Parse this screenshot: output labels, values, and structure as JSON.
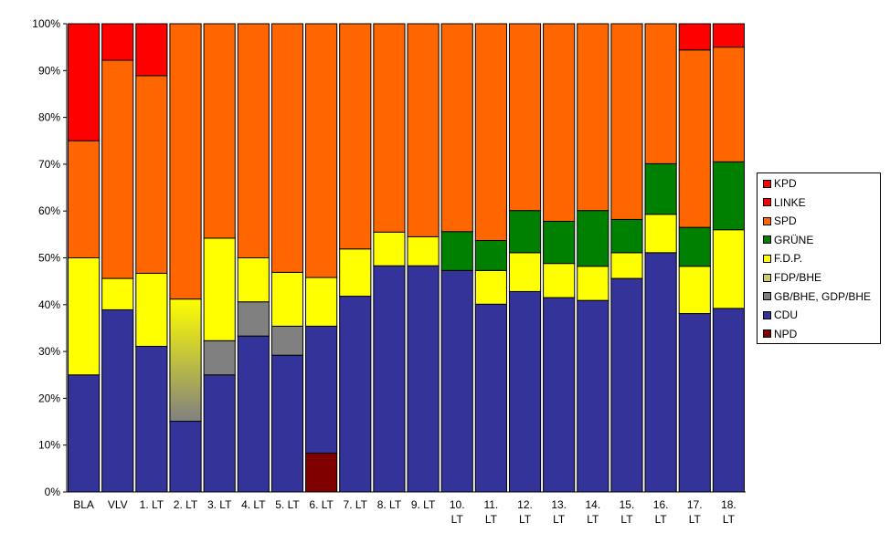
{
  "chart_data": {
    "type": "bar",
    "stacked": "percent",
    "categories": [
      "BLA",
      "VLV",
      "1. LT",
      "2. LT",
      "3. LT",
      "4. LT",
      "5. LT",
      "6. LT",
      "7. LT",
      "8. LT",
      "9. LT",
      "10. LT",
      "11. LT",
      "12. LT",
      "13. LT",
      "14. LT",
      "15. LT",
      "16. LT",
      "17. LT",
      "18. LT"
    ],
    "category_lines": [
      [
        "BLA"
      ],
      [
        "VLV"
      ],
      [
        "1. LT"
      ],
      [
        "2. LT"
      ],
      [
        "3. LT"
      ],
      [
        "4. LT"
      ],
      [
        "5. LT"
      ],
      [
        "6. LT"
      ],
      [
        "7. LT"
      ],
      [
        "8. LT"
      ],
      [
        "9. LT"
      ],
      [
        "10.",
        "LT"
      ],
      [
        "11.",
        "LT"
      ],
      [
        "12.",
        "LT"
      ],
      [
        "13.",
        "LT"
      ],
      [
        "14.",
        "LT"
      ],
      [
        "15.",
        "LT"
      ],
      [
        "16.",
        "LT"
      ],
      [
        "17.",
        "LT"
      ],
      [
        "18.",
        "LT"
      ]
    ],
    "ylim": [
      0,
      100
    ],
    "yticks": [
      "0%",
      "10%",
      "20%",
      "30%",
      "40%",
      "50%",
      "60%",
      "70%",
      "80%",
      "90%",
      "100%"
    ],
    "legend_position": "right",
    "series": [
      {
        "name": "NPD",
        "color": "#800000",
        "values": [
          0,
          0,
          0,
          0,
          0,
          0,
          0,
          8.3,
          0,
          0,
          0,
          0,
          0,
          0,
          0,
          0,
          0,
          0,
          0,
          0
        ]
      },
      {
        "name": "CDU",
        "color": "#333399",
        "values": [
          25,
          38.9,
          31.1,
          15.1,
          25,
          33.3,
          29.2,
          27.1,
          41.8,
          48.3,
          48.3,
          47.3,
          40.1,
          42.8,
          41.5,
          40.9,
          45.6,
          51.1,
          38.1,
          39.2
        ]
      },
      {
        "name": "GB/BHE, GDP/BHE",
        "color": "#808080",
        "values": [
          0,
          0,
          0,
          0,
          7.3,
          7.3,
          6.2,
          0,
          0,
          0,
          0,
          0,
          0,
          0,
          0,
          0,
          0,
          0,
          0,
          0
        ]
      },
      {
        "name": "FDP/BHE",
        "color": "#cccc66",
        "values": [
          0,
          0,
          0,
          26.1,
          0,
          0,
          0,
          0,
          0,
          0,
          0,
          0,
          0,
          0,
          0,
          0,
          0,
          0,
          0,
          0
        ]
      },
      {
        "name": "F.D.P.",
        "color": "#ffff00",
        "values": [
          25,
          6.7,
          15.6,
          0,
          21.9,
          9.4,
          11.5,
          10.4,
          10.1,
          7.2,
          6.2,
          0,
          7.2,
          8.3,
          7.3,
          7.3,
          5.5,
          8.2,
          10.1,
          16.8
        ]
      },
      {
        "name": "GRÜNE",
        "color": "#008000",
        "values": [
          0,
          0,
          0,
          0,
          0,
          0,
          0,
          0,
          0,
          0,
          0,
          8.3,
          6.4,
          9,
          9,
          11.9,
          7.1,
          10.8,
          8.3,
          14.5
        ]
      },
      {
        "name": "SPD",
        "color": "#ff6600",
        "values": [
          25,
          46.6,
          42.2,
          58.8,
          45.8,
          50,
          53.1,
          54.2,
          48.1,
          44.5,
          45.5,
          44.4,
          46.3,
          39.9,
          42.2,
          39.9,
          41.8,
          29.9,
          37.9,
          24.5
        ]
      },
      {
        "name": "LINKE",
        "color": "#ff0000",
        "values": [
          0,
          0,
          0,
          0,
          0,
          0,
          0,
          0,
          0,
          0,
          0,
          0,
          0,
          0,
          0,
          0,
          0,
          0,
          5.6,
          5
        ]
      },
      {
        "name": "KPD",
        "color": "#ff0000",
        "values": [
          25,
          7.8,
          11.1,
          0,
          0,
          0,
          0,
          0,
          0,
          0,
          0,
          0,
          0,
          0,
          0,
          0,
          0,
          0,
          0,
          0
        ]
      }
    ],
    "legend_order": [
      "KPD",
      "LINKE",
      "SPD",
      "GRÜNE",
      "F.D.P.",
      "FDP/BHE",
      "GB/BHE, GDP/BHE",
      "CDU",
      "NPD"
    ],
    "gradient_note": "2. LT FDP/BHE segment shows a yellow-to-grey gradient"
  }
}
